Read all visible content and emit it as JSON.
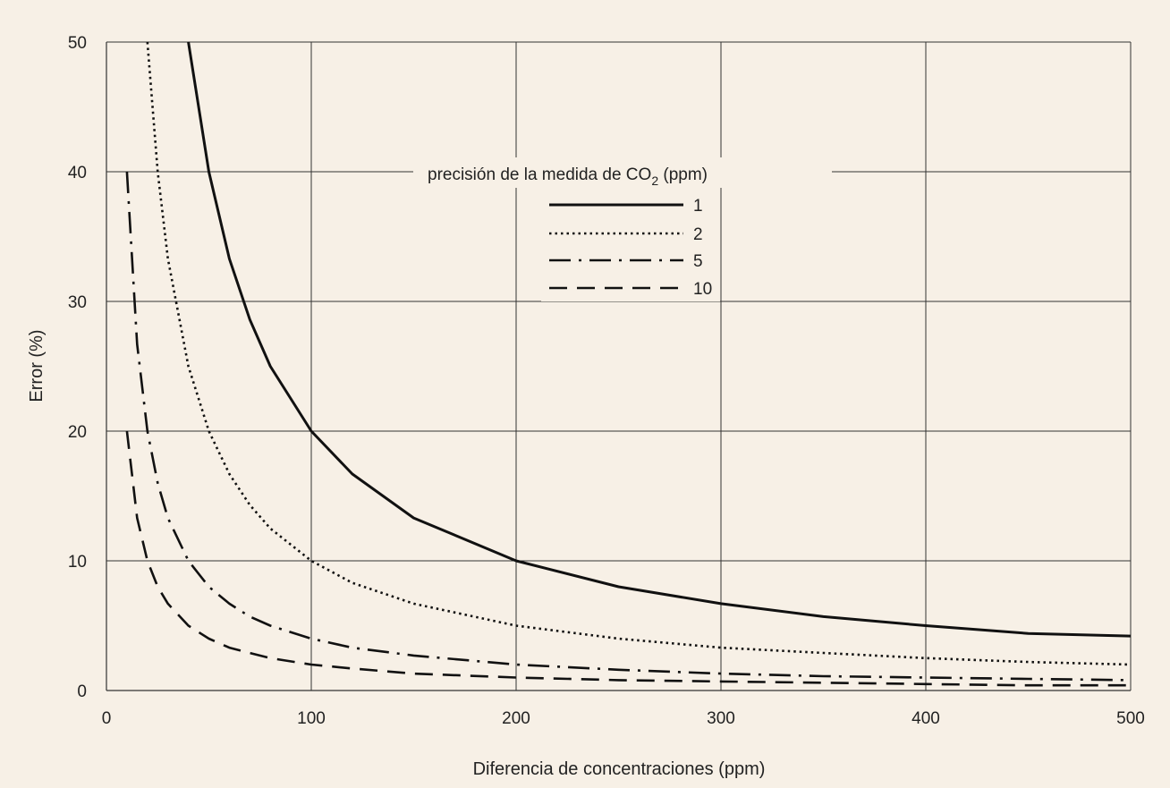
{
  "chart_data": {
    "type": "line",
    "title": "",
    "xlabel": "Diferencia de concentraciones (ppm)",
    "ylabel": "Error (%)",
    "xlim": [
      0,
      500
    ],
    "ylim": [
      0,
      50
    ],
    "x_ticks": [
      0,
      100,
      200,
      300,
      400,
      500
    ],
    "y_ticks": [
      0,
      10,
      20,
      30,
      40,
      50
    ],
    "grid": true,
    "legend": {
      "title_main": "precisión de la medida de CO",
      "title_sub": "2",
      "title_tail": " (ppm)",
      "placement": "top-center"
    },
    "x": [
      8,
      10,
      15,
      20,
      25,
      30,
      40,
      50,
      60,
      70,
      80,
      100,
      120,
      150,
      200,
      250,
      300,
      350,
      400,
      450,
      500
    ],
    "series": [
      {
        "name": "1",
        "style": "solid",
        "values": [
          null,
          null,
          null,
          null,
          null,
          null,
          50,
          40,
          33.3,
          28.6,
          25,
          20,
          16.7,
          13.3,
          10,
          8,
          6.7,
          5.7,
          5,
          4.4,
          4.2
        ]
      },
      {
        "name": "2",
        "style": "dotted",
        "values": [
          null,
          null,
          null,
          50,
          40,
          33.3,
          25,
          20,
          16.7,
          14.3,
          12.5,
          10,
          8.3,
          6.7,
          5,
          4,
          3.3,
          2.9,
          2.5,
          2.2,
          2
        ]
      },
      {
        "name": "5",
        "style": "dashdot",
        "values": [
          null,
          40,
          26.7,
          20,
          16,
          13.3,
          10,
          8,
          6.7,
          5.7,
          5,
          4,
          3.3,
          2.7,
          2,
          1.6,
          1.3,
          1.1,
          1,
          0.9,
          0.8
        ]
      },
      {
        "name": "10",
        "style": "dashed",
        "values": [
          null,
          20,
          13.3,
          10,
          8,
          6.7,
          5,
          4,
          3.3,
          2.9,
          2.5,
          2,
          1.7,
          1.3,
          1,
          0.8,
          0.7,
          0.6,
          0.5,
          0.4,
          0.4
        ]
      }
    ],
    "colors": {
      "background": "#f7f0e6",
      "line": "#111111",
      "grid": "#333333"
    }
  }
}
